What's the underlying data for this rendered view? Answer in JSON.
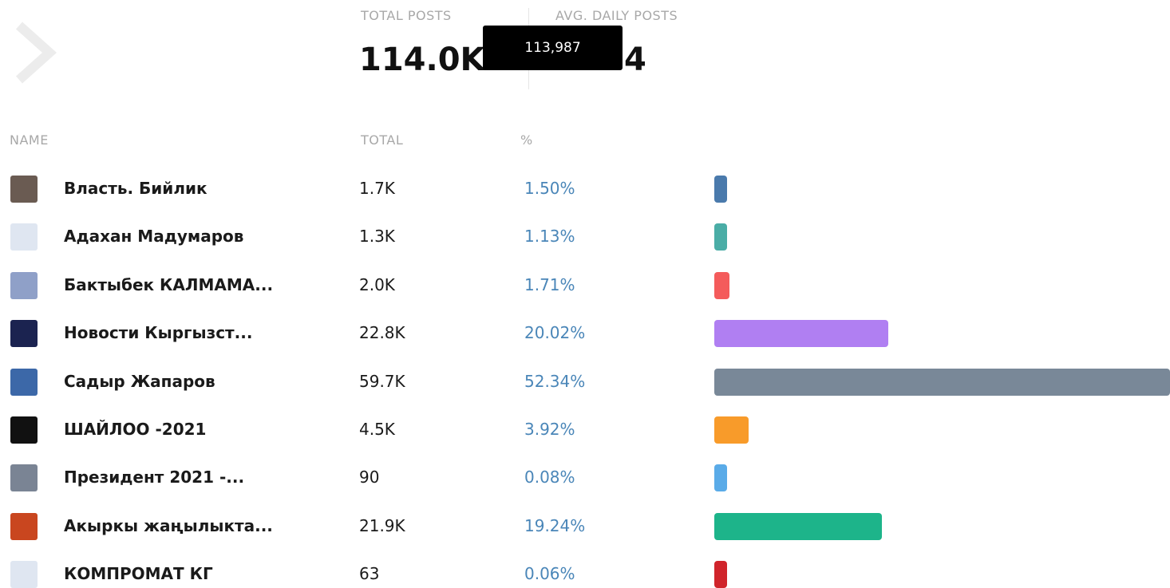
{
  "header": {
    "stats": [
      {
        "label": "TOTAL POSTS",
        "value": "114.0K"
      },
      {
        "label": "AVG. DAILY POSTS",
        "value": "4"
      }
    ],
    "tooltip": "113,987"
  },
  "table": {
    "columns": [
      "NAME",
      "TOTAL",
      "%"
    ],
    "rows": [
      {
        "name": "Власть. Бийлик",
        "total": "1.7K",
        "value": 1.5,
        "value_label": "1.50%",
        "color": "#4a7aac"
      },
      {
        "name": "Адахан Мадумаров",
        "total": "1.3K",
        "value": 1.13,
        "value_label": "1.13%",
        "color": "#4aada6"
      },
      {
        "name": "Бактыбек КАЛМАМА...",
        "total": "2.0K",
        "value": 1.71,
        "value_label": "1.71%",
        "color": "#f45b5b"
      },
      {
        "name": "Новости Кыргызст...",
        "total": "22.8K",
        "value": 20.02,
        "value_label": "20.02%",
        "color": "#b07ff2"
      },
      {
        "name": "Садыр Жапаров",
        "total": "59.7K",
        "value": 52.34,
        "value_label": "52.34%",
        "color": "#798898"
      },
      {
        "name": "ШАЙЛОО -2021",
        "total": "4.5K",
        "value": 3.92,
        "value_label": "3.92%",
        "color": "#f89b2a"
      },
      {
        "name": "Президент 2021 -...",
        "total": "90",
        "value": 0.08,
        "value_label": "0.08%",
        "color": "#5aabe8"
      },
      {
        "name": "Акыркы жаңылыкта...",
        "total": "21.9K",
        "value": 19.24,
        "value_label": "19.24%",
        "color": "#1db48a"
      },
      {
        "name": "КОМПРОМАТ КГ",
        "total": "63",
        "value": 0.06,
        "value_label": "0.06%",
        "color": "#d0242b"
      }
    ]
  }
}
